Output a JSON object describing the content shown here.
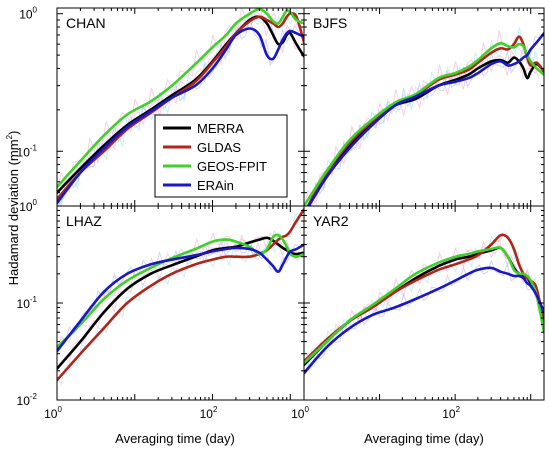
{
  "chart_data": {
    "type": "line",
    "y_axis_title": "Hadamard deviation (mm",
    "y_axis_sup": "2",
    "y_axis_close": ")",
    "x_axis_title": "Averaging time (day)",
    "xscale": "log",
    "yscale": "log",
    "xlim": [
      1,
      1500
    ],
    "legend": {
      "placement": "inside-top-left-panel",
      "entries": [
        {
          "name": "MERRA",
          "color": "#000000"
        },
        {
          "name": "GLDAS",
          "color": "#b22418"
        },
        {
          "name": "GEOS-FPIT",
          "color": "#3cd228"
        },
        {
          "name": "ERAin",
          "color": "#1818c8"
        }
      ]
    },
    "tick_labels": {
      "x": [
        {
          "base": "10",
          "exp": "0",
          "value": 1
        },
        {
          "base": "10",
          "exp": "2",
          "value": 100
        }
      ],
      "y_top": [
        {
          "base": "10",
          "exp": "-1",
          "value": 0.1
        },
        {
          "base": "10",
          "exp": "0",
          "value": 1
        }
      ],
      "y_bottom": [
        {
          "base": "10",
          "exp": "-2",
          "value": 0.01
        },
        {
          "base": "10",
          "exp": "-1",
          "value": 0.1
        },
        {
          "base": "10",
          "exp": "0",
          "value": 1
        }
      ]
    },
    "panels": [
      {
        "title": "CHAN",
        "ylim": [
          0.04,
          1.1
        ],
        "series": [
          {
            "name": "MERRA",
            "x": [
              1,
              2,
              4,
              8,
              16,
              30,
              60,
              100,
              150,
              200,
              300,
              400,
              500,
              600,
              700,
              800,
              900,
              1000,
              1200,
              1500
            ],
            "y": [
              0.05,
              0.075,
              0.11,
              0.155,
              0.2,
              0.255,
              0.33,
              0.45,
              0.6,
              0.72,
              0.9,
              0.95,
              0.85,
              0.7,
              0.6,
              0.62,
              0.7,
              0.72,
              0.6,
              0.49
            ]
          },
          {
            "name": "GLDAS",
            "x": [
              1,
              2,
              4,
              8,
              16,
              30,
              60,
              100,
              150,
              200,
              300,
              400,
              500,
              600,
              700,
              800,
              900,
              1000,
              1200,
              1500
            ],
            "y": [
              0.045,
              0.07,
              0.1,
              0.145,
              0.19,
              0.245,
              0.32,
              0.44,
              0.58,
              0.72,
              0.88,
              0.95,
              0.9,
              0.85,
              0.8,
              0.85,
              0.95,
              1.0,
              0.95,
              0.62
            ]
          },
          {
            "name": "GEOS-FPIT",
            "x": [
              1,
              2,
              4,
              8,
              16,
              30,
              60,
              100,
              150,
              200,
              300,
              400,
              500,
              600,
              700,
              800,
              900,
              1000,
              1200,
              1500
            ],
            "y": [
              0.055,
              0.085,
              0.13,
              0.185,
              0.23,
              0.3,
              0.43,
              0.57,
              0.7,
              0.85,
              1.0,
              1.08,
              1.0,
              0.88,
              0.85,
              0.95,
              1.05,
              1.02,
              0.9,
              0.85
            ]
          },
          {
            "name": "ERAin",
            "x": [
              1,
              2,
              4,
              8,
              16,
              30,
              60,
              100,
              150,
              200,
              300,
              400,
              500,
              600,
              700,
              800,
              900,
              1000,
              1200,
              1500
            ],
            "y": [
              0.042,
              0.07,
              0.105,
              0.15,
              0.195,
              0.245,
              0.3,
              0.4,
              0.55,
              0.7,
              0.78,
              0.7,
              0.5,
              0.47,
              0.55,
              0.65,
              0.72,
              0.75,
              0.72,
              0.68
            ]
          }
        ]
      },
      {
        "title": "BJFS",
        "ylim": [
          0.04,
          1.1
        ],
        "series": [
          {
            "name": "MERRA",
            "x": [
              1,
              2,
              4,
              8,
              16,
              30,
              60,
              100,
              150,
              200,
              300,
              400,
              500,
              600,
              700,
              800,
              900,
              1000,
              1200,
              1500
            ],
            "y": [
              0.035,
              0.07,
              0.11,
              0.16,
              0.215,
              0.24,
              0.3,
              0.33,
              0.36,
              0.4,
              0.45,
              0.46,
              0.44,
              0.48,
              0.45,
              0.4,
              0.34,
              0.38,
              0.43,
              0.38
            ]
          },
          {
            "name": "GLDAS",
            "x": [
              1,
              2,
              4,
              8,
              16,
              30,
              60,
              100,
              150,
              200,
              300,
              400,
              500,
              600,
              700,
              800,
              900,
              1000,
              1200,
              1500
            ],
            "y": [
              0.035,
              0.07,
              0.115,
              0.165,
              0.215,
              0.255,
              0.33,
              0.36,
              0.39,
              0.44,
              0.52,
              0.56,
              0.55,
              0.6,
              0.68,
              0.6,
              0.48,
              0.42,
              0.44,
              0.38
            ]
          },
          {
            "name": "GEOS-FPIT",
            "x": [
              1,
              2,
              4,
              8,
              16,
              30,
              60,
              100,
              150,
              200,
              300,
              400,
              500,
              600,
              700,
              800,
              900,
              1000,
              1200,
              1500
            ],
            "y": [
              0.04,
              0.072,
              0.12,
              0.17,
              0.225,
              0.26,
              0.34,
              0.37,
              0.41,
              0.46,
              0.56,
              0.61,
              0.58,
              0.57,
              0.6,
              0.58,
              0.5,
              0.45,
              0.4,
              0.36
            ]
          },
          {
            "name": "ERAin",
            "x": [
              1,
              2,
              4,
              8,
              16,
              30,
              60,
              100,
              150,
              200,
              300,
              400,
              500,
              600,
              700,
              800,
              900,
              1000,
              1200,
              1500
            ],
            "y": [
              0.035,
              0.065,
              0.105,
              0.155,
              0.215,
              0.25,
              0.3,
              0.32,
              0.34,
              0.37,
              0.43,
              0.45,
              0.42,
              0.43,
              0.45,
              0.48,
              0.5,
              0.55,
              0.62,
              0.72
            ]
          }
        ]
      },
      {
        "title": "LHAZ",
        "ylim": [
          0.01,
          1.0
        ],
        "series": [
          {
            "name": "MERRA",
            "x": [
              1,
              2,
              4,
              8,
              16,
              30,
              60,
              100,
              150,
              200,
              300,
              400,
              500,
              600,
              700,
              800,
              900,
              1000,
              1200,
              1500
            ],
            "y": [
              0.021,
              0.04,
              0.08,
              0.14,
              0.2,
              0.245,
              0.3,
              0.35,
              0.37,
              0.38,
              0.42,
              0.45,
              0.47,
              0.44,
              0.4,
              0.37,
              0.35,
              0.33,
              0.32,
              0.33
            ]
          },
          {
            "name": "GLDAS",
            "x": [
              1,
              2,
              4,
              8,
              16,
              30,
              60,
              100,
              150,
              200,
              300,
              400,
              500,
              600,
              700,
              800,
              900,
              1000,
              1200,
              1500
            ],
            "y": [
              0.016,
              0.03,
              0.055,
              0.1,
              0.15,
              0.2,
              0.25,
              0.28,
              0.3,
              0.3,
              0.3,
              0.32,
              0.35,
              0.4,
              0.45,
              0.48,
              0.5,
              0.55,
              0.7,
              0.92
            ]
          },
          {
            "name": "GEOS-FPIT",
            "x": [
              1,
              2,
              4,
              8,
              16,
              30,
              60,
              100,
              150,
              200,
              300,
              400,
              500,
              600,
              700,
              800,
              900,
              1000,
              1200,
              1500
            ],
            "y": [
              0.035,
              0.06,
              0.11,
              0.17,
              0.23,
              0.29,
              0.36,
              0.43,
              0.45,
              0.43,
              0.38,
              0.32,
              0.36,
              0.48,
              0.5,
              0.45,
              0.38,
              0.32,
              0.3,
              0.32
            ]
          },
          {
            "name": "ERAin",
            "x": [
              1,
              2,
              4,
              8,
              16,
              30,
              60,
              100,
              150,
              200,
              300,
              400,
              500,
              600,
              700,
              800,
              900,
              1000,
              1200,
              1500
            ],
            "y": [
              0.032,
              0.065,
              0.13,
              0.2,
              0.25,
              0.28,
              0.31,
              0.34,
              0.36,
              0.37,
              0.36,
              0.33,
              0.28,
              0.24,
              0.21,
              0.25,
              0.3,
              0.34,
              0.36,
              0.4
            ]
          }
        ]
      },
      {
        "title": "YAR2",
        "ylim": [
          0.01,
          1.0
        ],
        "series": [
          {
            "name": "MERRA",
            "x": [
              1,
              2,
              4,
              8,
              16,
              30,
              60,
              100,
              150,
              200,
              300,
              400,
              500,
              600,
              700,
              800,
              900,
              1000,
              1200,
              1500
            ],
            "y": [
              0.023,
              0.04,
              0.065,
              0.09,
              0.13,
              0.18,
              0.24,
              0.28,
              0.3,
              0.32,
              0.35,
              0.37,
              0.3,
              0.23,
              0.2,
              0.19,
              0.18,
              0.16,
              0.12,
              0.08
            ]
          },
          {
            "name": "GLDAS",
            "x": [
              1,
              2,
              4,
              8,
              16,
              30,
              60,
              100,
              150,
              200,
              300,
              400,
              500,
              600,
              700,
              800,
              900,
              1000,
              1200,
              1500
            ],
            "y": [
              0.025,
              0.042,
              0.065,
              0.09,
              0.13,
              0.17,
              0.22,
              0.25,
              0.28,
              0.31,
              0.4,
              0.5,
              0.47,
              0.36,
              0.25,
              0.2,
              0.18,
              0.17,
              0.14,
              0.06
            ]
          },
          {
            "name": "GEOS-FPIT",
            "x": [
              1,
              2,
              4,
              8,
              16,
              30,
              60,
              100,
              150,
              200,
              300,
              400,
              500,
              600,
              700,
              800,
              900,
              1000,
              1200,
              1500
            ],
            "y": [
              0.024,
              0.04,
              0.066,
              0.095,
              0.14,
              0.2,
              0.26,
              0.3,
              0.32,
              0.34,
              0.36,
              0.37,
              0.3,
              0.22,
              0.2,
              0.2,
              0.19,
              0.17,
              0.12,
              0.05
            ]
          },
          {
            "name": "ERAin",
            "x": [
              1,
              2,
              4,
              8,
              16,
              30,
              60,
              100,
              150,
              200,
              300,
              400,
              500,
              600,
              700,
              800,
              900,
              1000,
              1200,
              1500
            ],
            "y": [
              0.019,
              0.035,
              0.055,
              0.075,
              0.09,
              0.11,
              0.14,
              0.17,
              0.2,
              0.22,
              0.23,
              0.21,
              0.2,
              0.19,
              0.19,
              0.18,
              0.16,
              0.15,
              0.12,
              0.08
            ]
          }
        ]
      }
    ]
  }
}
